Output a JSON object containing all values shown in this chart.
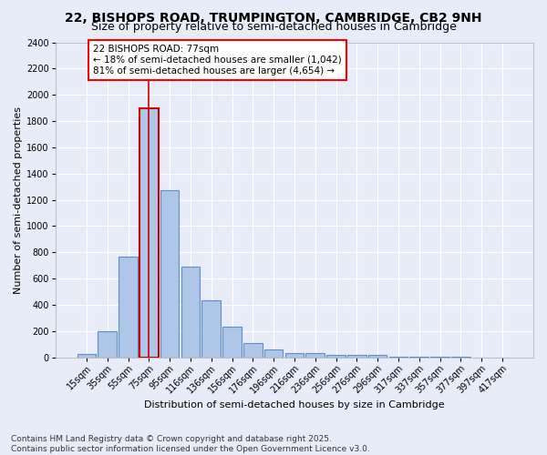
{
  "title": "22, BISHOPS ROAD, TRUMPINGTON, CAMBRIDGE, CB2 9NH",
  "subtitle": "Size of property relative to semi-detached houses in Cambridge",
  "xlabel": "Distribution of semi-detached houses by size in Cambridge",
  "ylabel": "Number of semi-detached properties",
  "categories": [
    "15sqm",
    "35sqm",
    "55sqm",
    "75sqm",
    "95sqm",
    "116sqm",
    "136sqm",
    "156sqm",
    "176sqm",
    "196sqm",
    "216sqm",
    "236sqm",
    "256sqm",
    "276sqm",
    "296sqm",
    "317sqm",
    "337sqm",
    "357sqm",
    "377sqm",
    "397sqm",
    "417sqm"
  ],
  "values": [
    25,
    200,
    770,
    1900,
    1275,
    690,
    435,
    230,
    105,
    60,
    35,
    30,
    20,
    20,
    15,
    5,
    2,
    2,
    1,
    0,
    0
  ],
  "bar_color": "#aec6e8",
  "bar_edge_color": "#5b8fc9",
  "highlight_bar_index": 3,
  "highlight_bar_edge_color": "#cc0000",
  "vline_x": 3,
  "vline_color": "#cc0000",
  "annotation_box_text": "22 BISHOPS ROAD: 77sqm\n← 18% of semi-detached houses are smaller (1,042)\n81% of semi-detached houses are larger (4,654) →",
  "ylim": [
    0,
    2400
  ],
  "yticks": [
    0,
    200,
    400,
    600,
    800,
    1000,
    1200,
    1400,
    1600,
    1800,
    2000,
    2200,
    2400
  ],
  "background_color": "#e8ecf8",
  "plot_bg_color": "#e8ecf8",
  "footer_text": "Contains HM Land Registry data © Crown copyright and database right 2025.\nContains public sector information licensed under the Open Government Licence v3.0.",
  "title_fontsize": 10,
  "subtitle_fontsize": 9,
  "axis_label_fontsize": 8,
  "tick_fontsize": 7,
  "annotation_fontsize": 7.5,
  "footer_fontsize": 6.5
}
